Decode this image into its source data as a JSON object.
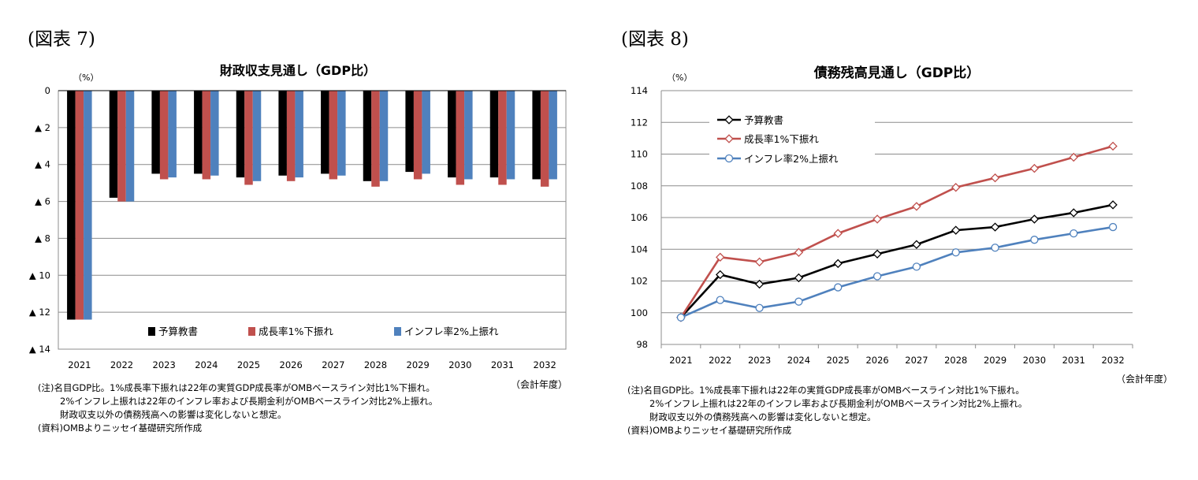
{
  "charts": [
    {
      "label": "(図表 7)",
      "notes": [
        "(注)名目GDP比。1%成長率下振れは22年の実質GDP成長率がOMBベースライン対比1%下振れ。",
        "2%インフレ上振れは22年のインフレ率および長期金利がOMBベースライン対比2%上振れ。",
        "財政収支以外の債務残高への影響は変化しないと想定。",
        "(資料)OMBよりニッセイ基礎研究所作成"
      ]
    },
    {
      "label": "(図表 8)",
      "notes": [
        "(注)名目GDP比。1%成長率下振れは22年の実質GDP成長率がOMBベースライン対比1%下振れ。",
        "2%インフレ上振れは22年のインフレ率および長期金利がOMBベースライン対比2%上振れ。",
        "財政収支以外の債務残高への影響は変化しないと想定。",
        "(資料)OMBよりニッセイ基礎研究所作成"
      ]
    }
  ],
  "chart_data": [
    {
      "type": "bar",
      "title": "財政収支見通し（GDP比）",
      "ylabel": "（%）",
      "xlabel": "（会計年度）",
      "categories": [
        "2021",
        "2022",
        "2023",
        "2024",
        "2025",
        "2026",
        "2027",
        "2028",
        "2029",
        "2030",
        "2031",
        "2032"
      ],
      "ylim": [
        -14,
        0
      ],
      "yticks": [
        0,
        -2,
        -4,
        -6,
        -8,
        -10,
        -12,
        -14
      ],
      "ytick_labels": [
        "0",
        "▲ 2",
        "▲ 4",
        "▲ 6",
        "▲ 8",
        "▲ 10",
        "▲ 12",
        "▲ 14"
      ],
      "grid": true,
      "legend_position": "bottom-inside",
      "series": [
        {
          "name": "予算教書",
          "color": "#000000",
          "values": [
            -12.4,
            -5.8,
            -4.5,
            -4.5,
            -4.7,
            -4.6,
            -4.5,
            -4.9,
            -4.4,
            -4.7,
            -4.7,
            -4.8
          ]
        },
        {
          "name": "成長率1%下振れ",
          "color": "#c0504d",
          "values": [
            -12.4,
            -6.0,
            -4.8,
            -4.8,
            -5.1,
            -4.9,
            -4.8,
            -5.2,
            -4.8,
            -5.1,
            -5.1,
            -5.2
          ]
        },
        {
          "name": "インフレ率2%上振れ",
          "color": "#4f81bd",
          "values": [
            -12.4,
            -6.0,
            -4.7,
            -4.6,
            -4.9,
            -4.7,
            -4.6,
            -4.9,
            -4.5,
            -4.8,
            -4.8,
            -4.8
          ]
        }
      ]
    },
    {
      "type": "line",
      "title": "債務残高見通し（GDP比）",
      "ylabel": "（%）",
      "xlabel": "（会計年度）",
      "categories": [
        "2021",
        "2022",
        "2023",
        "2024",
        "2025",
        "2026",
        "2027",
        "2028",
        "2029",
        "2030",
        "2031",
        "2032"
      ],
      "ylim": [
        98,
        114
      ],
      "yticks": [
        98,
        100,
        102,
        104,
        106,
        108,
        110,
        112,
        114
      ],
      "grid": true,
      "legend_position": "top-left",
      "series": [
        {
          "name": "予算教書",
          "color": "#000000",
          "marker": "diamond",
          "values": [
            99.7,
            102.4,
            101.8,
            102.2,
            103.1,
            103.7,
            104.3,
            105.2,
            105.4,
            105.9,
            106.3,
            106.8
          ]
        },
        {
          "name": "成長率1%下振れ",
          "color": "#c0504d",
          "marker": "diamond",
          "values": [
            99.7,
            103.5,
            103.2,
            103.8,
            105.0,
            105.9,
            106.7,
            107.9,
            108.5,
            109.1,
            109.8,
            110.5
          ]
        },
        {
          "name": "インフレ率2%上振れ",
          "color": "#4f81bd",
          "marker": "circle",
          "values": [
            99.7,
            100.8,
            100.3,
            100.7,
            101.6,
            102.3,
            102.9,
            103.8,
            104.1,
            104.6,
            105.0,
            105.4
          ]
        }
      ]
    }
  ]
}
